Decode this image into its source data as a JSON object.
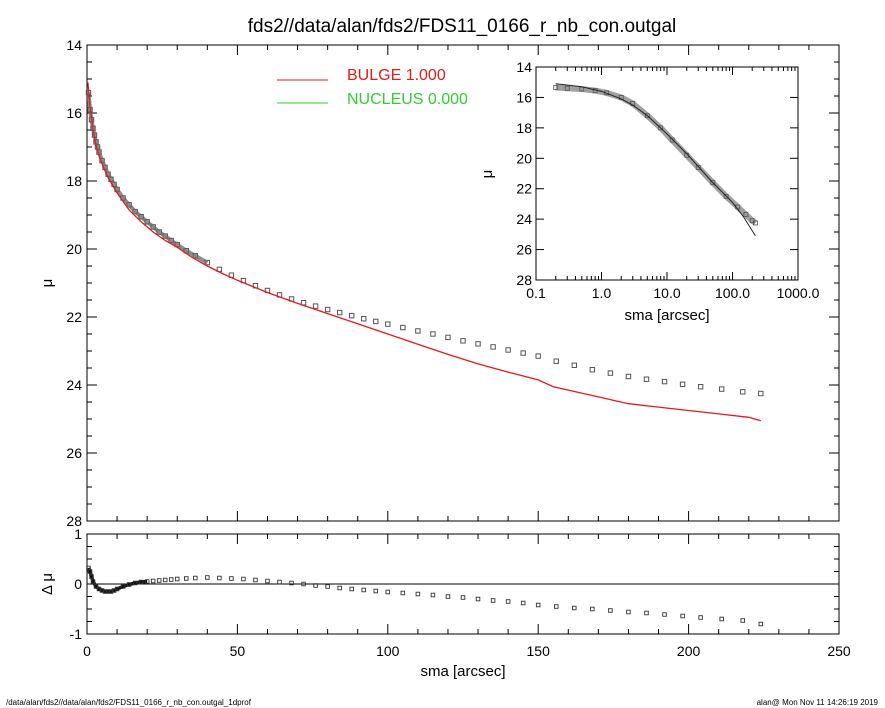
{
  "chart_data": [
    {
      "type": "scatter",
      "panel": "main",
      "title": "fds2//data/alan/fds2/FDS11_0166_r_nb_con.outgal",
      "ylabel": "μ",
      "xlim": [
        0,
        250
      ],
      "ylim": [
        28,
        14
      ],
      "x_ticks": [
        "0",
        "50",
        "100",
        "150",
        "200",
        "250"
      ],
      "y_ticks": [
        "14",
        "16",
        "18",
        "20",
        "22",
        "24",
        "26",
        "28"
      ],
      "legend": {
        "placement": "top-center",
        "entries": [
          {
            "label": "BULGE  1.000",
            "color": "#e41a1c"
          },
          {
            "label": "NUCLEUS  0.000",
            "color": "#33cc33"
          }
        ]
      },
      "series": [
        {
          "name": "data",
          "style": "open-squares",
          "color": "#555555",
          "x": [
            0.5,
            1,
            1.5,
            2,
            2.5,
            3,
            3.5,
            4,
            5,
            6,
            7,
            8,
            9,
            10,
            12,
            14,
            16,
            18,
            20,
            22,
            24,
            26,
            28,
            30,
            33,
            36,
            40,
            44,
            48,
            52,
            56,
            60,
            64,
            68,
            72,
            76,
            80,
            84,
            88,
            92,
            96,
            100,
            105,
            110,
            115,
            120,
            125,
            130,
            135,
            140,
            145,
            150,
            156,
            162,
            168,
            174,
            180,
            186,
            192,
            198,
            204,
            211,
            218,
            224
          ],
          "y": [
            15.4,
            15.9,
            16.2,
            16.45,
            16.65,
            16.85,
            17.0,
            17.15,
            17.4,
            17.6,
            17.8,
            17.95,
            18.1,
            18.25,
            18.5,
            18.7,
            18.9,
            19.05,
            19.2,
            19.35,
            19.5,
            19.62,
            19.75,
            19.87,
            20.05,
            20.2,
            20.4,
            20.6,
            20.77,
            20.93,
            21.08,
            21.22,
            21.35,
            21.47,
            21.58,
            21.68,
            21.78,
            21.87,
            21.96,
            22.05,
            22.13,
            22.21,
            22.31,
            22.41,
            22.5,
            22.6,
            22.7,
            22.79,
            22.88,
            22.97,
            23.06,
            23.15,
            23.3,
            23.42,
            23.55,
            23.65,
            23.75,
            23.83,
            23.9,
            23.98,
            24.05,
            24.12,
            24.2,
            24.25
          ]
        },
        {
          "name": "BULGE",
          "style": "line",
          "color": "#e41a1c",
          "x": [
            0.3,
            1,
            2,
            3,
            4,
            5,
            7,
            10,
            14,
            18,
            22,
            26,
            30,
            35,
            40,
            45,
            50,
            55,
            60,
            70,
            80,
            90,
            100,
            110,
            120,
            130,
            140,
            150,
            155,
            160,
            170,
            180,
            190,
            200,
            210,
            220,
            224
          ],
          "y": [
            15.1,
            15.8,
            16.5,
            16.95,
            17.25,
            17.5,
            17.9,
            18.35,
            18.85,
            19.2,
            19.5,
            19.75,
            19.95,
            20.25,
            20.5,
            20.72,
            20.92,
            21.1,
            21.28,
            21.6,
            21.9,
            22.2,
            22.5,
            22.8,
            23.1,
            23.38,
            23.62,
            23.85,
            24.05,
            24.15,
            24.35,
            24.55,
            24.65,
            24.75,
            24.85,
            24.95,
            25.05
          ]
        }
      ]
    },
    {
      "type": "scatter",
      "panel": "inset",
      "xlabel": "sma [arcsec]",
      "ylabel": "μ",
      "xscale": "log",
      "xlim": [
        0.1,
        1000
      ],
      "ylim": [
        28,
        14
      ],
      "x_ticks": [
        "0.1",
        "1.0",
        "10.0",
        "100.0",
        "1000.0"
      ],
      "y_ticks": [
        "14",
        "16",
        "18",
        "20",
        "22",
        "24",
        "26",
        "28"
      ],
      "series": [
        {
          "name": "data",
          "style": "open-squares",
          "color": "#777777",
          "x": [
            0.2,
            0.3,
            0.5,
            0.8,
            1.2,
            2,
            3,
            5,
            8,
            12,
            20,
            30,
            50,
            80,
            120,
            160,
            200,
            224
          ],
          "y": [
            15.35,
            15.4,
            15.45,
            15.55,
            15.7,
            16.0,
            16.4,
            17.2,
            18.0,
            18.8,
            19.8,
            20.6,
            21.6,
            22.5,
            23.2,
            23.7,
            24.1,
            24.25
          ]
        },
        {
          "name": "model",
          "style": "line",
          "color": "#222222",
          "x": [
            0.2,
            0.5,
            1,
            2,
            3,
            5,
            10,
            20,
            50,
            100,
            150,
            224
          ],
          "y": [
            15.1,
            15.3,
            15.6,
            16.1,
            16.5,
            17.2,
            18.4,
            19.7,
            21.6,
            22.9,
            23.9,
            25.1
          ]
        }
      ]
    },
    {
      "type": "scatter",
      "panel": "residual",
      "xlabel": "sma [arcsec]",
      "ylabel": "Δ μ",
      "xlim": [
        0,
        250
      ],
      "ylim": [
        -1,
        1
      ],
      "x_ticks": [
        "0",
        "50",
        "100",
        "150",
        "200",
        "250"
      ],
      "y_ticks": [
        "1",
        "0",
        "-1"
      ],
      "series": [
        {
          "name": "residual",
          "style": "open-squares",
          "color": "#222222",
          "x": [
            0.5,
            1,
            1.5,
            2,
            3,
            4,
            5,
            6,
            7,
            8,
            9,
            10,
            12,
            14,
            16,
            18,
            20,
            22,
            24,
            26,
            28,
            30,
            33,
            36,
            40,
            44,
            48,
            52,
            56,
            60,
            64,
            68,
            72,
            76,
            80,
            84,
            88,
            92,
            96,
            100,
            105,
            110,
            115,
            120,
            125,
            130,
            135,
            140,
            145,
            150,
            156,
            162,
            168,
            174,
            180,
            186,
            192,
            198,
            204,
            211,
            218,
            224
          ],
          "y": [
            0.32,
            0.25,
            0.15,
            0.05,
            -0.05,
            -0.1,
            -0.13,
            -0.15,
            -0.15,
            -0.15,
            -0.13,
            -0.1,
            -0.05,
            -0.01,
            0.02,
            0.04,
            0.05,
            0.06,
            0.07,
            0.08,
            0.09,
            0.1,
            0.11,
            0.12,
            0.13,
            0.12,
            0.11,
            0.1,
            0.08,
            0.06,
            0.04,
            0.02,
            0.0,
            -0.03,
            -0.05,
            -0.08,
            -0.1,
            -0.12,
            -0.14,
            -0.16,
            -0.18,
            -0.2,
            -0.22,
            -0.25,
            -0.27,
            -0.3,
            -0.33,
            -0.35,
            -0.38,
            -0.42,
            -0.45,
            -0.48,
            -0.5,
            -0.53,
            -0.56,
            -0.58,
            -0.61,
            -0.64,
            -0.67,
            -0.7,
            -0.73,
            -0.8
          ]
        }
      ]
    }
  ],
  "footer": {
    "left": "/data/alan/fds2//data/alan/fds2/FDS11_0166_r_nb_con.outgal_1dprof",
    "right": "alan@  Mon Nov 11 14:26:19 2019"
  }
}
